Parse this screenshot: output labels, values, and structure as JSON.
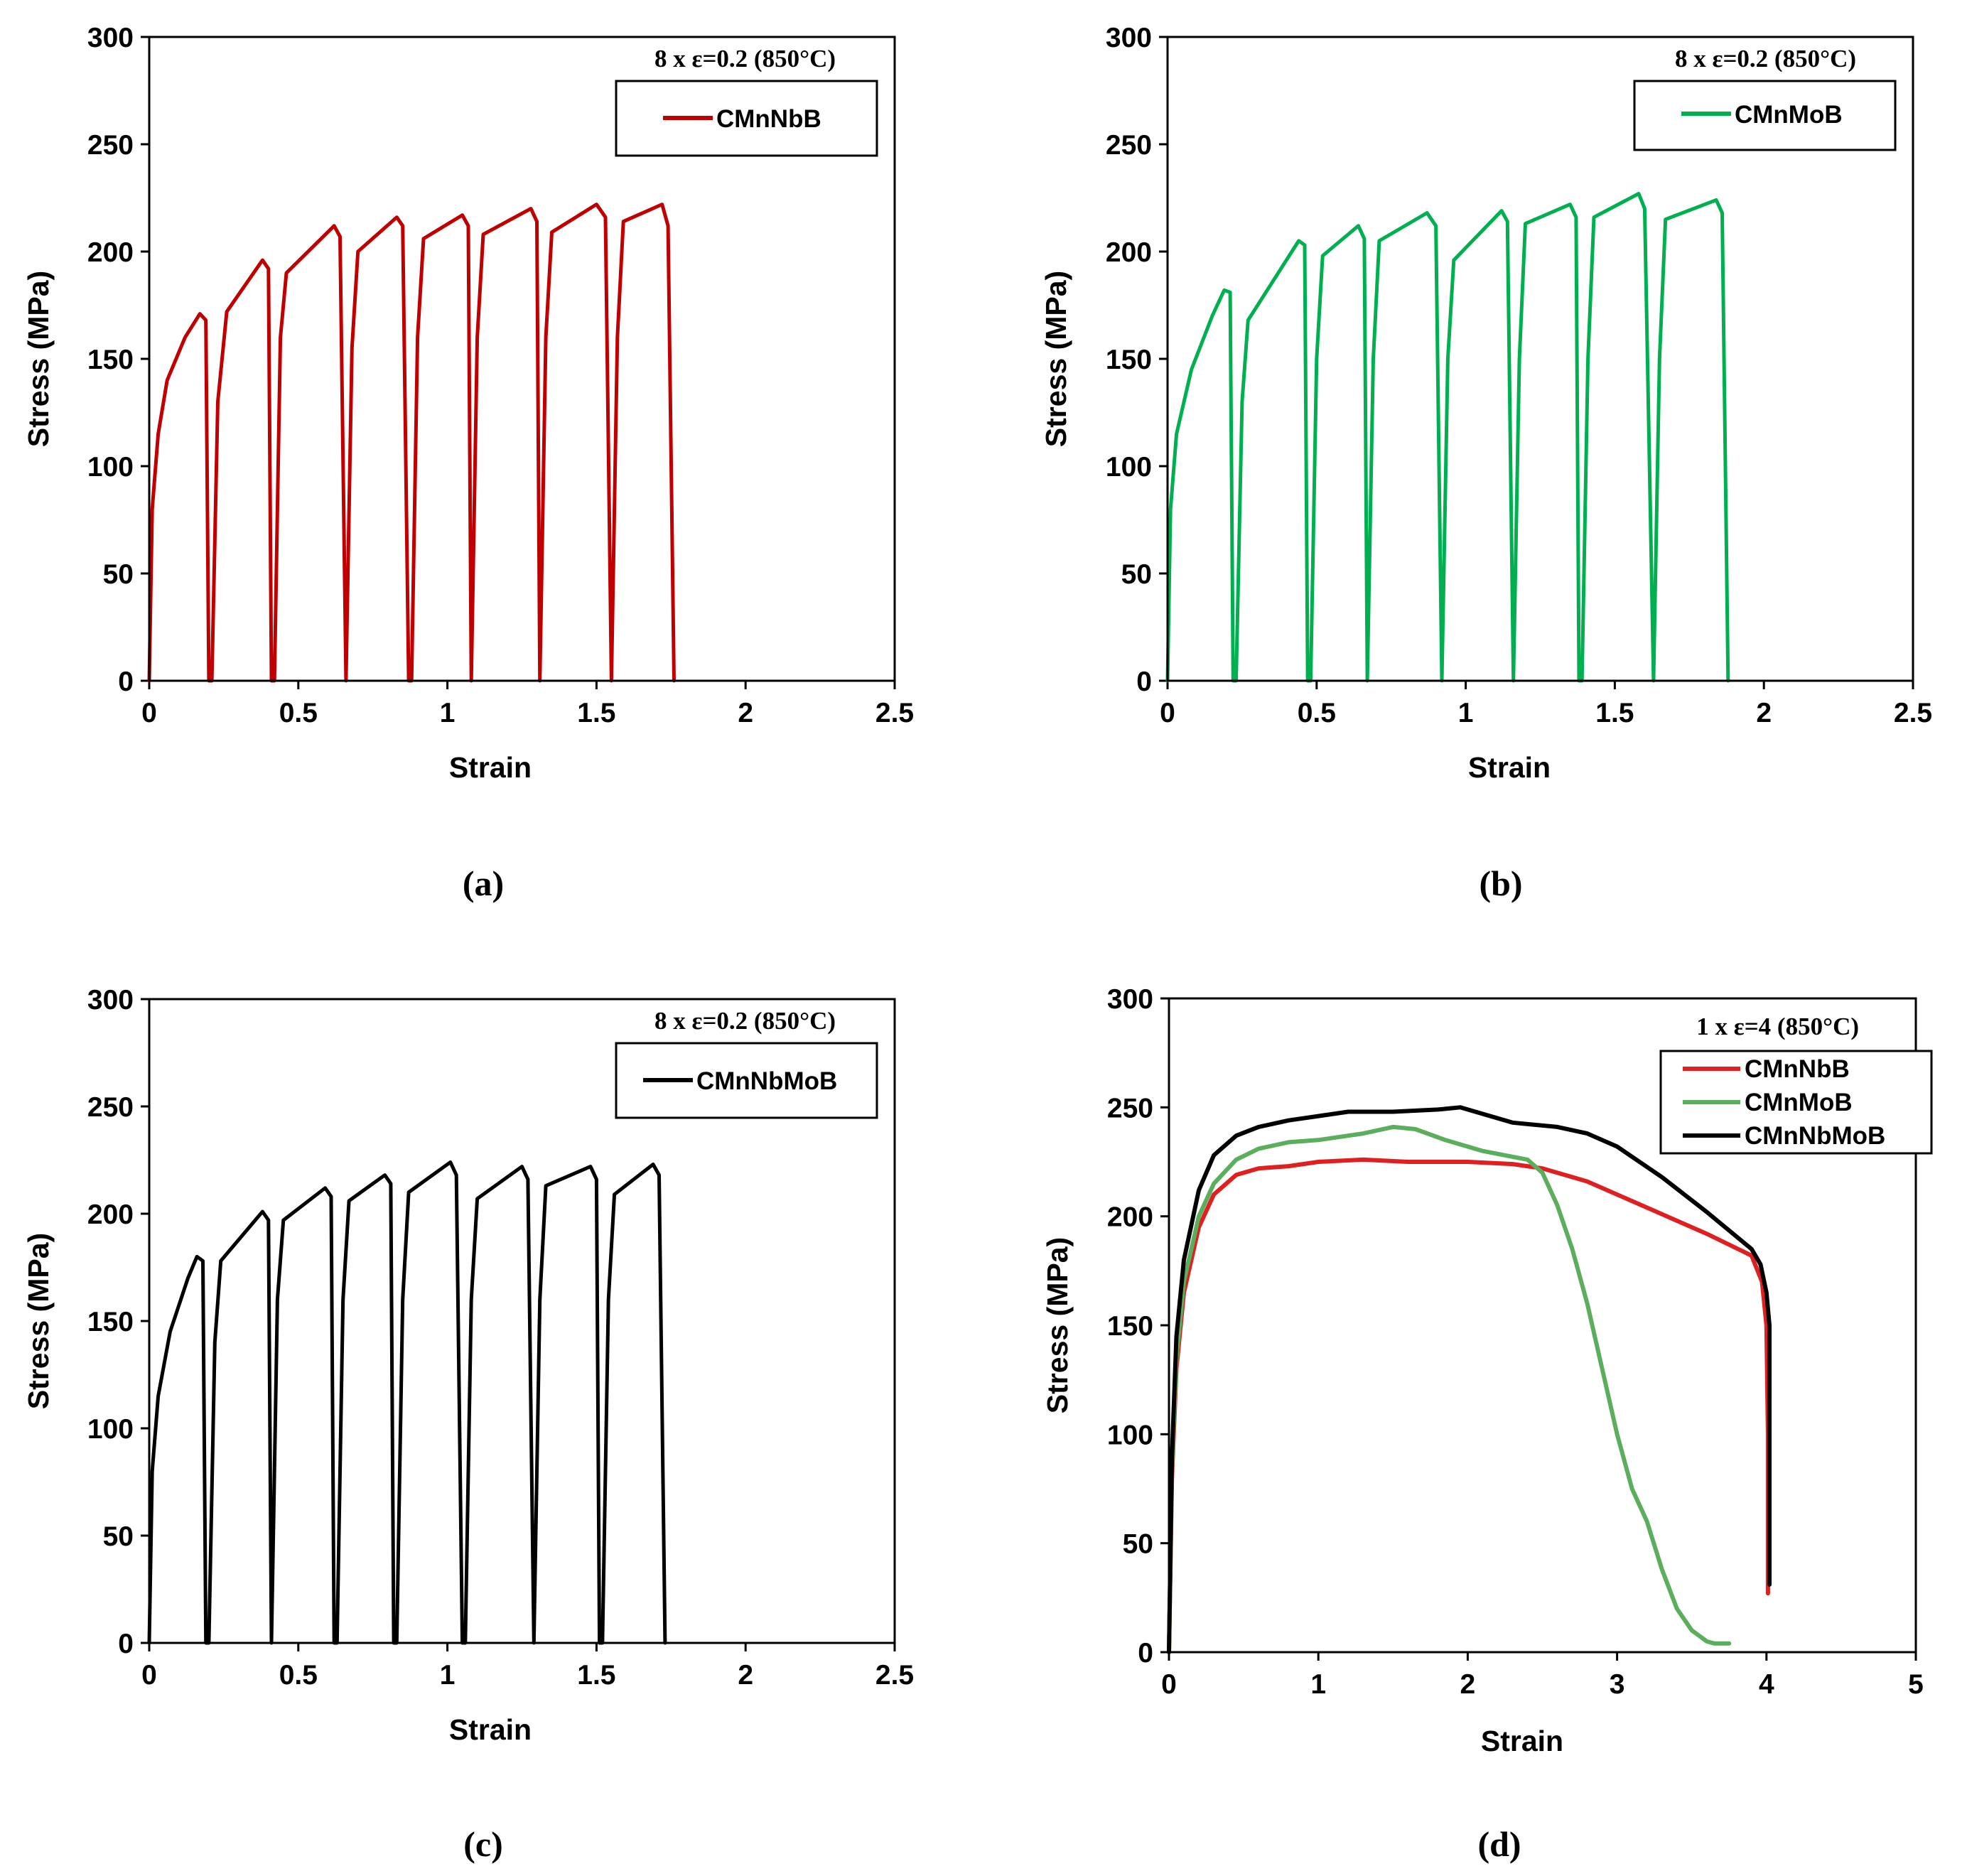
{
  "chart_data": [
    {
      "id": "a",
      "type": "line",
      "panel_label": "(a)",
      "annotation": "8 x ε=0.2 (850°C)",
      "xlabel": "Strain",
      "ylabel": "Stress (MPa)",
      "xlim": [
        0,
        2.5
      ],
      "ylim": [
        0,
        300
      ],
      "xticks": [
        0,
        0.5,
        1,
        1.5,
        2,
        2.5
      ],
      "xtick_labels": [
        "0",
        "0.5",
        "1",
        "1.5",
        "2",
        "2.5"
      ],
      "yticks": [
        0,
        50,
        100,
        150,
        200,
        250,
        300
      ],
      "ytick_labels": [
        "0",
        "50",
        "100",
        "150",
        "200",
        "250",
        "300"
      ],
      "legend_position": "top-right",
      "series": [
        {
          "name": "CMnNbB",
          "color": "#C00000",
          "points": [
            [
              0,
              0
            ],
            [
              0.01,
              80
            ],
            [
              0.03,
              115
            ],
            [
              0.06,
              140
            ],
            [
              0.12,
              160
            ],
            [
              0.17,
              171
            ],
            [
              0.19,
              168
            ],
            [
              0.2,
              0
            ],
            [
              0.21,
              0
            ],
            [
              0.23,
              130
            ],
            [
              0.26,
              172
            ],
            [
              0.38,
              196
            ],
            [
              0.4,
              192
            ],
            [
              0.41,
              0
            ],
            [
              0.42,
              0
            ],
            [
              0.44,
              160
            ],
            [
              0.46,
              190
            ],
            [
              0.62,
              212
            ],
            [
              0.64,
              207
            ],
            [
              0.66,
              0
            ],
            [
              0.68,
              155
            ],
            [
              0.7,
              200
            ],
            [
              0.83,
              216
            ],
            [
              0.85,
              212
            ],
            [
              0.87,
              0
            ],
            [
              0.88,
              0
            ],
            [
              0.9,
              160
            ],
            [
              0.92,
              206
            ],
            [
              1.05,
              217
            ],
            [
              1.07,
              212
            ],
            [
              1.08,
              0
            ],
            [
              1.1,
              160
            ],
            [
              1.12,
              208
            ],
            [
              1.28,
              220
            ],
            [
              1.3,
              214
            ],
            [
              1.31,
              0
            ],
            [
              1.33,
              160
            ],
            [
              1.35,
              209
            ],
            [
              1.5,
              222
            ],
            [
              1.53,
              216
            ],
            [
              1.55,
              0
            ],
            [
              1.57,
              160
            ],
            [
              1.59,
              214
            ],
            [
              1.72,
              222
            ],
            [
              1.74,
              212
            ],
            [
              1.76,
              0
            ]
          ]
        }
      ]
    },
    {
      "id": "b",
      "type": "line",
      "panel_label": "(b)",
      "annotation": "8 x ε=0.2 (850°C)",
      "xlabel": "Strain",
      "ylabel": "Stress (MPa)",
      "xlim": [
        0,
        2.5
      ],
      "ylim": [
        0,
        300
      ],
      "xticks": [
        0,
        0.5,
        1,
        1.5,
        2,
        2.5
      ],
      "xtick_labels": [
        "0",
        "0.5",
        "1",
        "1.5",
        "2",
        "2.5"
      ],
      "yticks": [
        0,
        50,
        100,
        150,
        200,
        250,
        300
      ],
      "ytick_labels": [
        "0",
        "50",
        "100",
        "150",
        "200",
        "250",
        "300"
      ],
      "legend_position": "top-right",
      "series": [
        {
          "name": "CMnMoB",
          "color": "#00B050",
          "points": [
            [
              0,
              0
            ],
            [
              0.01,
              80
            ],
            [
              0.03,
              115
            ],
            [
              0.08,
              145
            ],
            [
              0.15,
              170
            ],
            [
              0.19,
              182
            ],
            [
              0.21,
              181
            ],
            [
              0.22,
              0
            ],
            [
              0.23,
              0
            ],
            [
              0.25,
              130
            ],
            [
              0.27,
              168
            ],
            [
              0.44,
              205
            ],
            [
              0.46,
              203
            ],
            [
              0.47,
              0
            ],
            [
              0.48,
              0
            ],
            [
              0.5,
              150
            ],
            [
              0.52,
              198
            ],
            [
              0.64,
              212
            ],
            [
              0.66,
              206
            ],
            [
              0.67,
              0
            ],
            [
              0.69,
              150
            ],
            [
              0.71,
              205
            ],
            [
              0.87,
              218
            ],
            [
              0.9,
              212
            ],
            [
              0.92,
              0
            ],
            [
              0.94,
              150
            ],
            [
              0.96,
              196
            ],
            [
              1.12,
              219
            ],
            [
              1.14,
              214
            ],
            [
              1.16,
              0
            ],
            [
              1.18,
              150
            ],
            [
              1.2,
              213
            ],
            [
              1.35,
              222
            ],
            [
              1.37,
              216
            ],
            [
              1.38,
              0
            ],
            [
              1.39,
              0
            ],
            [
              1.41,
              150
            ],
            [
              1.43,
              216
            ],
            [
              1.58,
              227
            ],
            [
              1.6,
              220
            ],
            [
              1.63,
              0
            ],
            [
              1.65,
              150
            ],
            [
              1.67,
              215
            ],
            [
              1.84,
              224
            ],
            [
              1.86,
              218
            ],
            [
              1.88,
              0
            ]
          ]
        }
      ]
    },
    {
      "id": "c",
      "type": "line",
      "panel_label": "(c)",
      "annotation": "8 x ε=0.2 (850°C)",
      "xlabel": "Strain",
      "ylabel": "Stress (MPa)",
      "xlim": [
        0,
        2.5
      ],
      "ylim": [
        0,
        300
      ],
      "xticks": [
        0,
        0.5,
        1,
        1.5,
        2,
        2.5
      ],
      "xtick_labels": [
        "0",
        "0.5",
        "1",
        "1.5",
        "2",
        "2.5"
      ],
      "yticks": [
        0,
        50,
        100,
        150,
        200,
        250,
        300
      ],
      "ytick_labels": [
        "0",
        "50",
        "100",
        "150",
        "200",
        "250",
        "300"
      ],
      "legend_position": "top-right",
      "series": [
        {
          "name": "CMnNbMoB",
          "color": "#000000",
          "points": [
            [
              0,
              0
            ],
            [
              0.01,
              80
            ],
            [
              0.03,
              115
            ],
            [
              0.07,
              145
            ],
            [
              0.13,
              170
            ],
            [
              0.16,
              180
            ],
            [
              0.18,
              178
            ],
            [
              0.19,
              0
            ],
            [
              0.2,
              0
            ],
            [
              0.22,
              140
            ],
            [
              0.24,
              178
            ],
            [
              0.38,
              201
            ],
            [
              0.4,
              197
            ],
            [
              0.41,
              0
            ],
            [
              0.43,
              160
            ],
            [
              0.45,
              197
            ],
            [
              0.59,
              212
            ],
            [
              0.61,
              208
            ],
            [
              0.62,
              0
            ],
            [
              0.63,
              0
            ],
            [
              0.65,
              160
            ],
            [
              0.67,
              206
            ],
            [
              0.79,
              218
            ],
            [
              0.81,
              214
            ],
            [
              0.82,
              0
            ],
            [
              0.83,
              0
            ],
            [
              0.85,
              160
            ],
            [
              0.87,
              210
            ],
            [
              1.01,
              224
            ],
            [
              1.03,
              218
            ],
            [
              1.05,
              0
            ],
            [
              1.06,
              0
            ],
            [
              1.08,
              160
            ],
            [
              1.1,
              207
            ],
            [
              1.25,
              222
            ],
            [
              1.27,
              216
            ],
            [
              1.29,
              0
            ],
            [
              1.31,
              160
            ],
            [
              1.33,
              213
            ],
            [
              1.48,
              222
            ],
            [
              1.5,
              216
            ],
            [
              1.51,
              0
            ],
            [
              1.52,
              0
            ],
            [
              1.54,
              160
            ],
            [
              1.56,
              209
            ],
            [
              1.69,
              223
            ],
            [
              1.71,
              218
            ],
            [
              1.73,
              0
            ]
          ]
        }
      ]
    },
    {
      "id": "d",
      "type": "line",
      "panel_label": "(d)",
      "annotation": "1 x ε=4 (850°C)",
      "xlabel": "Strain",
      "ylabel": "Stress (MPa)",
      "xlim": [
        0,
        5
      ],
      "ylim": [
        0,
        300
      ],
      "xticks": [
        0,
        1,
        2,
        3,
        4,
        5
      ],
      "xtick_labels": [
        "0",
        "1",
        "2",
        "3",
        "4",
        "5"
      ],
      "yticks": [
        0,
        50,
        100,
        150,
        200,
        250,
        300
      ],
      "ytick_labels": [
        "0",
        "50",
        "100",
        "150",
        "200",
        "250",
        "300"
      ],
      "legend_position": "top-right",
      "series": [
        {
          "name": "CMnNbB",
          "color": "#E02020",
          "points": [
            [
              0,
              0
            ],
            [
              0.02,
              80
            ],
            [
              0.05,
              130
            ],
            [
              0.1,
              165
            ],
            [
              0.2,
              195
            ],
            [
              0.3,
              210
            ],
            [
              0.45,
              219
            ],
            [
              0.6,
              222
            ],
            [
              0.8,
              223
            ],
            [
              1.0,
              225
            ],
            [
              1.3,
              226
            ],
            [
              1.6,
              225
            ],
            [
              2.0,
              225
            ],
            [
              2.3,
              224
            ],
            [
              2.5,
              222
            ],
            [
              2.8,
              216
            ],
            [
              3.2,
              204
            ],
            [
              3.6,
              192
            ],
            [
              3.9,
              182
            ],
            [
              3.97,
              170
            ],
            [
              4.0,
              150
            ],
            [
              4.01,
              100
            ],
            [
              4.01,
              27
            ]
          ]
        },
        {
          "name": "CMnMoB",
          "color": "#5BAE5B",
          "points": [
            [
              0,
              0
            ],
            [
              0.02,
              85
            ],
            [
              0.05,
              135
            ],
            [
              0.1,
              170
            ],
            [
              0.2,
              200
            ],
            [
              0.3,
              215
            ],
            [
              0.45,
              226
            ],
            [
              0.6,
              231
            ],
            [
              0.8,
              234
            ],
            [
              1.0,
              235
            ],
            [
              1.3,
              238
            ],
            [
              1.5,
              241
            ],
            [
              1.65,
              240
            ],
            [
              1.85,
              235
            ],
            [
              2.1,
              230
            ],
            [
              2.4,
              226
            ],
            [
              2.5,
              220
            ],
            [
              2.6,
              205
            ],
            [
              2.7,
              185
            ],
            [
              2.8,
              160
            ],
            [
              2.9,
              130
            ],
            [
              3.0,
              100
            ],
            [
              3.1,
              75
            ],
            [
              3.2,
              60
            ],
            [
              3.3,
              38
            ],
            [
              3.4,
              20
            ],
            [
              3.5,
              10
            ],
            [
              3.6,
              5
            ],
            [
              3.65,
              4
            ],
            [
              3.75,
              4
            ]
          ]
        },
        {
          "name": "CMnNbMoB",
          "color": "#000000",
          "points": [
            [
              0,
              0
            ],
            [
              0.02,
              90
            ],
            [
              0.05,
              145
            ],
            [
              0.1,
              180
            ],
            [
              0.2,
              212
            ],
            [
              0.3,
              228
            ],
            [
              0.45,
              237
            ],
            [
              0.6,
              241
            ],
            [
              0.8,
              244
            ],
            [
              1.0,
              246
            ],
            [
              1.2,
              248
            ],
            [
              1.5,
              248
            ],
            [
              1.8,
              249
            ],
            [
              1.95,
              250
            ],
            [
              2.1,
              247
            ],
            [
              2.3,
              243
            ],
            [
              2.6,
              241
            ],
            [
              2.8,
              238
            ],
            [
              3.0,
              232
            ],
            [
              3.3,
              218
            ],
            [
              3.6,
              202
            ],
            [
              3.9,
              185
            ],
            [
              3.96,
              178
            ],
            [
              4.0,
              165
            ],
            [
              4.02,
              150
            ],
            [
              4.02,
              100
            ],
            [
              4.02,
              31
            ]
          ]
        }
      ]
    }
  ]
}
